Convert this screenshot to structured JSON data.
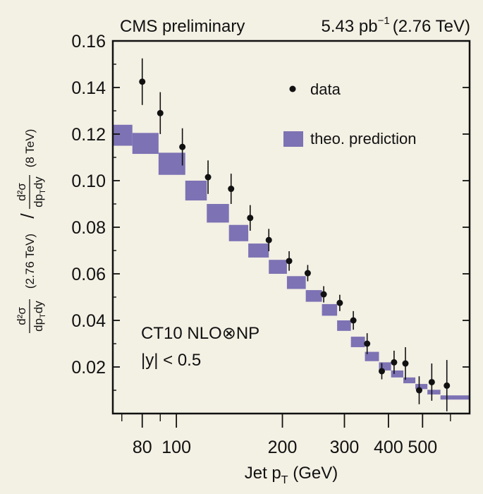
{
  "chart_data": {
    "type": "scatter",
    "title_left": "CMS  preliminary",
    "title_right": {
      "lumi": "5.43 pb",
      "exponent": "−1",
      "energy": "(2.76 TeV)"
    },
    "xlabel": {
      "prefix": "Jet p",
      "sub": "T",
      "suffix": " (GeV)"
    },
    "ylabel": {
      "d2sigma": "d²σ",
      "dpt": "dp",
      "sub": "T",
      "dy": "dy",
      "num_energy": "(2.76 TeV)",
      "slash": "/",
      "den_energy": "(8 TeV)"
    },
    "x_scale": "log",
    "xlim": [
      66,
      680
    ],
    "ylim": [
      0,
      0.16
    ],
    "x_ticks": [
      {
        "value": 80,
        "label": "80"
      },
      {
        "value": 100,
        "label": "100"
      },
      {
        "value": 200,
        "label": "200"
      },
      {
        "value": 300,
        "label": "300"
      },
      {
        "value": 400,
        "label": "400"
      },
      {
        "value": 500,
        "label": "500"
      }
    ],
    "x_minor_ticks": [
      70,
      90,
      600
    ],
    "y_ticks": [
      {
        "value": 0.02,
        "label": "0.02"
      },
      {
        "value": 0.04,
        "label": "0.04"
      },
      {
        "value": 0.06,
        "label": "0.06"
      },
      {
        "value": 0.08,
        "label": "0.08"
      },
      {
        "value": 0.1,
        "label": "0.10"
      },
      {
        "value": 0.12,
        "label": "0.12"
      },
      {
        "value": 0.14,
        "label": "0.14"
      },
      {
        "value": 0.16,
        "label": "0.16"
      }
    ],
    "legend": {
      "placement": "top-right",
      "data_label": "data",
      "theory_label": "theo. prediction"
    },
    "annotation": {
      "line1": "CT10 NLO⊗NP",
      "line2": "|y| < 0.5"
    },
    "colors": {
      "background": "#f3f0e4",
      "theory_band": "#7d72b4",
      "data_marker": "#111111",
      "axis": "#111111"
    },
    "data": [
      {
        "x": 80,
        "y": 0.1425,
        "err": 0.01
      },
      {
        "x": 90,
        "y": 0.129,
        "err": 0.009
      },
      {
        "x": 104,
        "y": 0.1145,
        "err": 0.008
      },
      {
        "x": 123,
        "y": 0.1015,
        "err": 0.0072
      },
      {
        "x": 143,
        "y": 0.0965,
        "err": 0.0065
      },
      {
        "x": 162,
        "y": 0.084,
        "err": 0.0055
      },
      {
        "x": 183,
        "y": 0.0745,
        "err": 0.0048
      },
      {
        "x": 209,
        "y": 0.0655,
        "err": 0.0042
      },
      {
        "x": 236,
        "y": 0.0603,
        "err": 0.0035
      },
      {
        "x": 262,
        "y": 0.0512,
        "err": 0.0035
      },
      {
        "x": 291,
        "y": 0.0475,
        "err": 0.0035
      },
      {
        "x": 318,
        "y": 0.04,
        "err": 0.004
      },
      {
        "x": 348,
        "y": 0.03,
        "err": 0.0045
      },
      {
        "x": 383,
        "y": 0.0182,
        "err": 0.0035
      },
      {
        "x": 415,
        "y": 0.022,
        "err": 0.005
      },
      {
        "x": 447,
        "y": 0.0215,
        "err": 0.007
      },
      {
        "x": 489,
        "y": 0.01,
        "err": 0.006
      },
      {
        "x": 531,
        "y": 0.0135,
        "err": 0.008
      },
      {
        "x": 586,
        "y": 0.012,
        "err": 0.011
      }
    ],
    "theory": [
      {
        "x_low": 66,
        "x_high": 75,
        "y_low": 0.115,
        "y_high": 0.124
      },
      {
        "x_low": 75,
        "x_high": 89,
        "y_low": 0.1115,
        "y_high": 0.1205
      },
      {
        "x_low": 89,
        "x_high": 106,
        "y_low": 0.1025,
        "y_high": 0.112
      },
      {
        "x_low": 106,
        "x_high": 122,
        "y_low": 0.0915,
        "y_high": 0.1
      },
      {
        "x_low": 122,
        "x_high": 141,
        "y_low": 0.082,
        "y_high": 0.09
      },
      {
        "x_low": 141,
        "x_high": 160,
        "y_low": 0.074,
        "y_high": 0.081
      },
      {
        "x_low": 160,
        "x_high": 183,
        "y_low": 0.067,
        "y_high": 0.073
      },
      {
        "x_low": 183,
        "x_high": 206,
        "y_low": 0.06,
        "y_high": 0.066
      },
      {
        "x_low": 206,
        "x_high": 233,
        "y_low": 0.0535,
        "y_high": 0.059
      },
      {
        "x_low": 233,
        "x_high": 259,
        "y_low": 0.048,
        "y_high": 0.053
      },
      {
        "x_low": 259,
        "x_high": 286,
        "y_low": 0.042,
        "y_high": 0.047
      },
      {
        "x_low": 286,
        "x_high": 313,
        "y_low": 0.0355,
        "y_high": 0.04
      },
      {
        "x_low": 313,
        "x_high": 343,
        "y_low": 0.0285,
        "y_high": 0.033
      },
      {
        "x_low": 343,
        "x_high": 376,
        "y_low": 0.0225,
        "y_high": 0.0265
      },
      {
        "x_low": 376,
        "x_high": 407,
        "y_low": 0.0185,
        "y_high": 0.022
      },
      {
        "x_low": 407,
        "x_high": 441,
        "y_low": 0.0155,
        "y_high": 0.0185
      },
      {
        "x_low": 441,
        "x_high": 477,
        "y_low": 0.013,
        "y_high": 0.0155
      },
      {
        "x_low": 477,
        "x_high": 516,
        "y_low": 0.0105,
        "y_high": 0.0127
      },
      {
        "x_low": 516,
        "x_high": 562,
        "y_low": 0.0082,
        "y_high": 0.0102
      },
      {
        "x_low": 562,
        "x_high": 680,
        "y_low": 0.006,
        "y_high": 0.0078
      }
    ]
  }
}
